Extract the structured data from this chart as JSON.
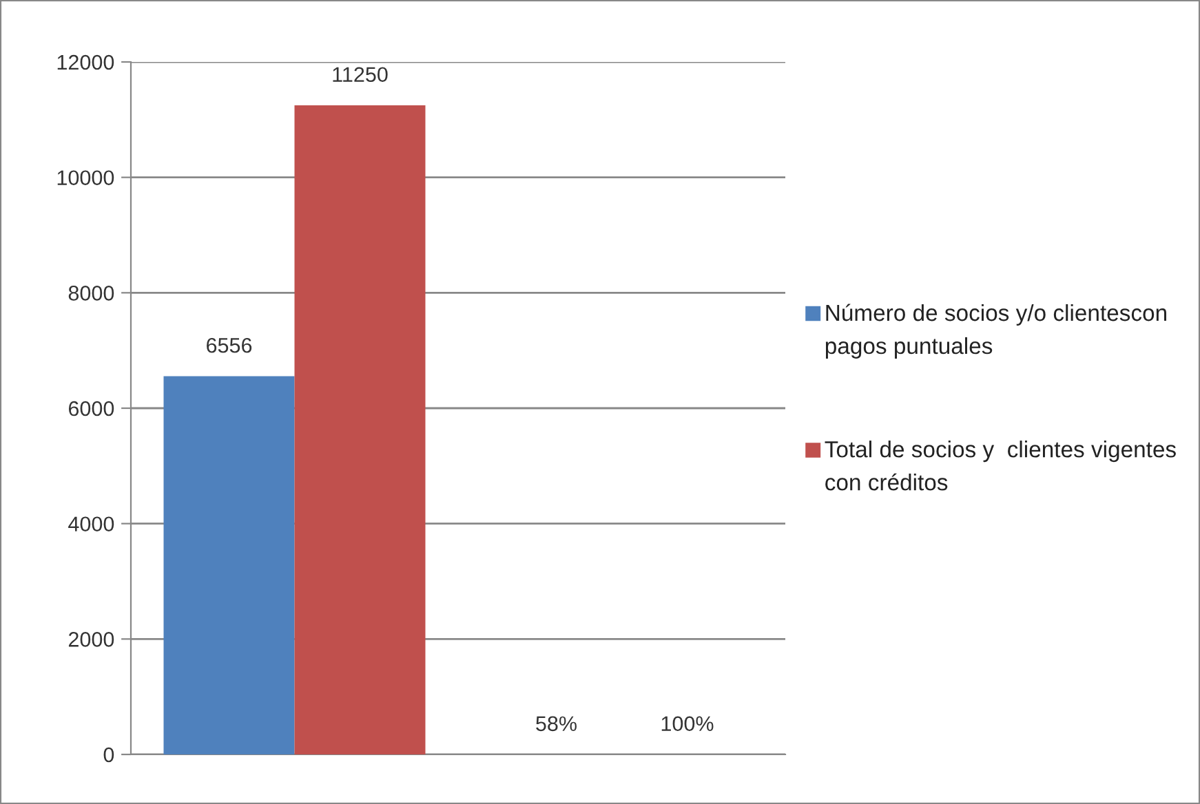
{
  "chart_data": {
    "type": "bar",
    "categories": [
      null,
      null
    ],
    "series": [
      {
        "name": "Número de socios y/o clientescon pagos puntuales",
        "color": "#4f81bd",
        "values": [
          6556,
          0.58
        ],
        "value_labels": [
          "6556",
          "58%"
        ]
      },
      {
        "name": "Total de socios y  clientes vigentes con créditos",
        "color": "#c0504d",
        "values": [
          11250,
          1
        ],
        "value_labels": [
          "11250",
          "100%"
        ]
      }
    ],
    "ylim": [
      0,
      12000
    ],
    "yticks": [
      0,
      2000,
      4000,
      6000,
      8000,
      10000,
      12000
    ],
    "grid": "y",
    "legend": "right"
  }
}
